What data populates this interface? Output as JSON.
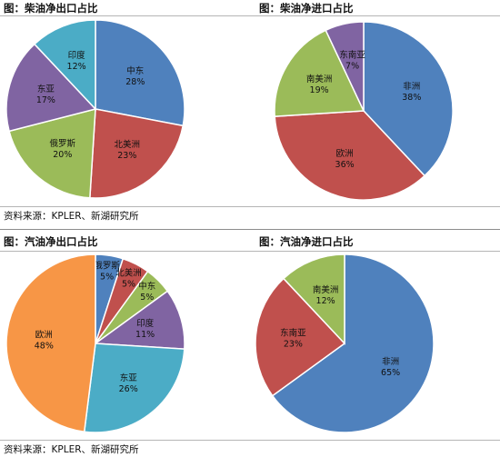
{
  "source_text": "资料来源：KPLER、新湖研究所",
  "chart_data": [
    {
      "type": "pie",
      "title": "图：柴油净出口占比",
      "slices": [
        {
          "label": "中东",
          "value": 28,
          "value_label": "28%",
          "color": "#4f81bd"
        },
        {
          "label": "北美洲",
          "value": 23,
          "value_label": "23%",
          "color": "#c0504d"
        },
        {
          "label": "俄罗斯",
          "value": 20,
          "value_label": "20%",
          "color": "#9bbb59"
        },
        {
          "label": "东亚",
          "value": 17,
          "value_label": "17%",
          "color": "#8064a2"
        },
        {
          "label": "印度",
          "value": 12,
          "value_label": "12%",
          "color": "#4bacc6"
        }
      ]
    },
    {
      "type": "pie",
      "title": "图：柴油净进口占比",
      "slices": [
        {
          "label": "非洲",
          "value": 38,
          "value_label": "38%",
          "color": "#4f81bd"
        },
        {
          "label": "欧洲",
          "value": 36,
          "value_label": "36%",
          "color": "#c0504d"
        },
        {
          "label": "南美洲",
          "value": 19,
          "value_label": "19%",
          "color": "#9bbb59"
        },
        {
          "label": "东南亚",
          "value": 7,
          "value_label": "7%",
          "color": "#8064a2"
        }
      ]
    },
    {
      "type": "pie",
      "title": "图：汽油净出口占比",
      "slices": [
        {
          "label": "俄罗斯",
          "value": 5,
          "value_label": "5%",
          "color": "#4f81bd"
        },
        {
          "label": "北美洲",
          "value": 5,
          "value_label": "5%",
          "color": "#c0504d"
        },
        {
          "label": "中东",
          "value": 5,
          "value_label": "5%",
          "color": "#9bbb59"
        },
        {
          "label": "印度",
          "value": 11,
          "value_label": "11%",
          "color": "#8064a2"
        },
        {
          "label": "东亚",
          "value": 26,
          "value_label": "26%",
          "color": "#4bacc6"
        },
        {
          "label": "欧洲",
          "value": 48,
          "value_label": "48%",
          "color": "#f79646"
        }
      ]
    },
    {
      "type": "pie",
      "title": "图：汽油净进口占比",
      "slices": [
        {
          "label": "非洲",
          "value": 65,
          "value_label": "65%",
          "color": "#4f81bd"
        },
        {
          "label": "东南亚",
          "value": 23,
          "value_label": "23%",
          "color": "#c0504d"
        },
        {
          "label": "南美洲",
          "value": 12,
          "value_label": "12%",
          "color": "#9bbb59"
        }
      ]
    }
  ]
}
